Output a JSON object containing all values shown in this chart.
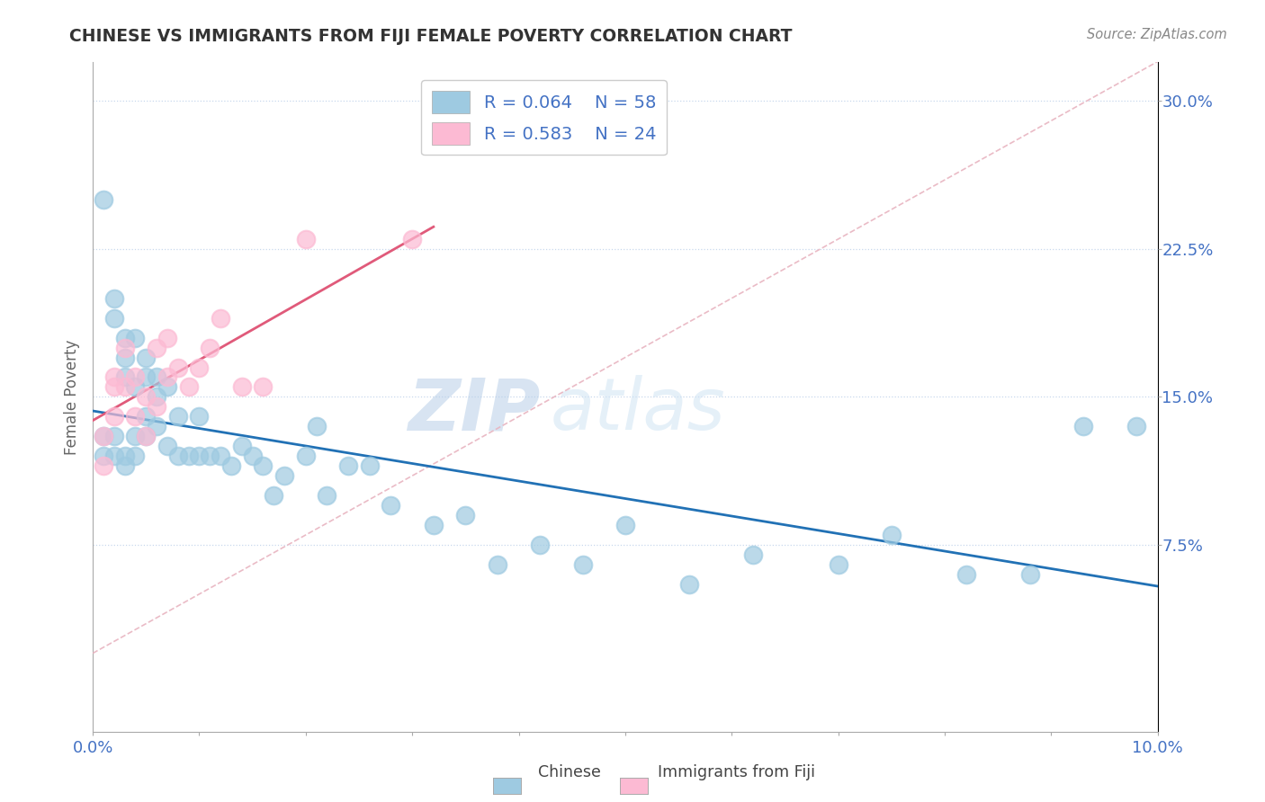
{
  "title": "CHINESE VS IMMIGRANTS FROM FIJI FEMALE POVERTY CORRELATION CHART",
  "source": "Source: ZipAtlas.com",
  "ylabel": "Female Poverty",
  "xlim": [
    0.0,
    0.1
  ],
  "ylim": [
    -0.02,
    0.32
  ],
  "yticks": [
    0.075,
    0.15,
    0.225,
    0.3
  ],
  "ytick_labels": [
    "7.5%",
    "15.0%",
    "22.5%",
    "30.0%"
  ],
  "xticks": [
    0.0,
    0.01,
    0.02,
    0.03,
    0.04,
    0.05,
    0.06,
    0.07,
    0.08,
    0.09,
    0.1
  ],
  "xtick_labels": [
    "0.0%",
    "",
    "",
    "",
    "",
    "",
    "",
    "",
    "",
    "",
    "10.0%"
  ],
  "color_chinese": "#9ecae1",
  "color_fiji": "#fcbad3",
  "line_color_chinese": "#2171b5",
  "line_color_fiji": "#e05a7a",
  "diag_color": "#e8b4c0",
  "legend_r_chinese": "R = 0.064",
  "legend_n_chinese": "N = 58",
  "legend_r_fiji": "R = 0.583",
  "legend_n_fiji": "N = 24",
  "watermark_zip": "ZIP",
  "watermark_atlas": "atlas",
  "chinese_x": [
    0.001,
    0.001,
    0.001,
    0.002,
    0.002,
    0.002,
    0.002,
    0.003,
    0.003,
    0.003,
    0.003,
    0.003,
    0.004,
    0.004,
    0.004,
    0.004,
    0.005,
    0.005,
    0.005,
    0.005,
    0.006,
    0.006,
    0.006,
    0.007,
    0.007,
    0.008,
    0.008,
    0.009,
    0.01,
    0.01,
    0.011,
    0.012,
    0.013,
    0.014,
    0.015,
    0.016,
    0.017,
    0.018,
    0.02,
    0.021,
    0.022,
    0.024,
    0.026,
    0.028,
    0.032,
    0.035,
    0.038,
    0.042,
    0.046,
    0.05,
    0.056,
    0.062,
    0.07,
    0.075,
    0.082,
    0.088,
    0.093,
    0.098
  ],
  "chinese_y": [
    0.25,
    0.12,
    0.13,
    0.19,
    0.2,
    0.13,
    0.12,
    0.16,
    0.17,
    0.18,
    0.12,
    0.115,
    0.18,
    0.155,
    0.13,
    0.12,
    0.17,
    0.16,
    0.14,
    0.13,
    0.16,
    0.15,
    0.135,
    0.155,
    0.125,
    0.14,
    0.12,
    0.12,
    0.14,
    0.12,
    0.12,
    0.12,
    0.115,
    0.125,
    0.12,
    0.115,
    0.1,
    0.11,
    0.12,
    0.135,
    0.1,
    0.115,
    0.115,
    0.095,
    0.085,
    0.09,
    0.065,
    0.075,
    0.065,
    0.085,
    0.055,
    0.07,
    0.065,
    0.08,
    0.06,
    0.06,
    0.135,
    0.135
  ],
  "fiji_x": [
    0.001,
    0.001,
    0.002,
    0.002,
    0.002,
    0.003,
    0.003,
    0.004,
    0.004,
    0.005,
    0.005,
    0.006,
    0.006,
    0.007,
    0.007,
    0.008,
    0.009,
    0.01,
    0.011,
    0.012,
    0.014,
    0.016,
    0.02,
    0.03
  ],
  "fiji_y": [
    0.115,
    0.13,
    0.14,
    0.155,
    0.16,
    0.155,
    0.175,
    0.14,
    0.16,
    0.13,
    0.15,
    0.145,
    0.175,
    0.16,
    0.18,
    0.165,
    0.155,
    0.165,
    0.175,
    0.19,
    0.155,
    0.155,
    0.23,
    0.23
  ]
}
